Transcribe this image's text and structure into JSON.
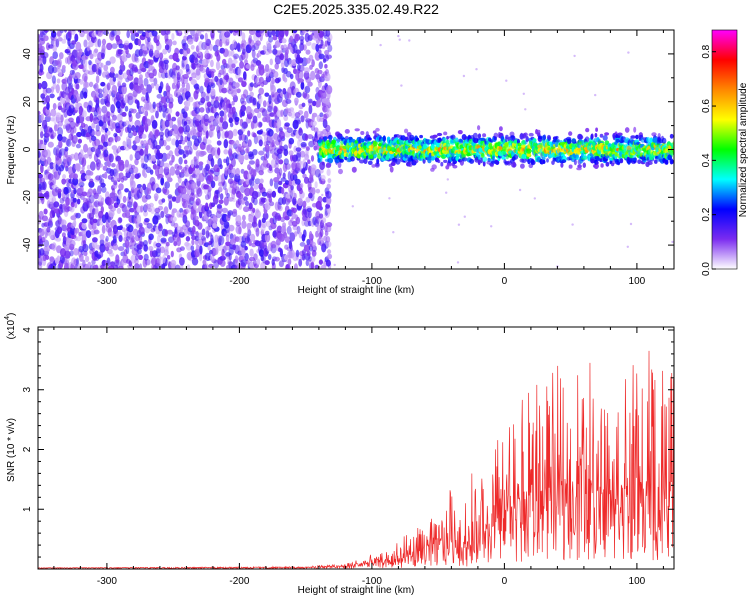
{
  "figure_title": "C2E5.2025.335.02.49.R22",
  "colors": {
    "snr_line": "#ee2a2a",
    "axis": "#000000",
    "background": "#ffffff"
  },
  "chart_data": [
    {
      "type": "heatmap",
      "xlabel": "Height of straight line (km)",
      "ylabel": "Frequency (Hz)",
      "xlim": [
        -352,
        128
      ],
      "ylim": [
        -50,
        50
      ],
      "xticks": [
        -300,
        -200,
        -100,
        0,
        100
      ],
      "xtick_labels": [
        "-300",
        "-200",
        "-100",
        "0",
        "100"
      ],
      "yticks": [
        -40,
        -20,
        0,
        20,
        40
      ],
      "ytick_labels": [
        "-40",
        "-20",
        "0",
        "20",
        "40"
      ],
      "colorbar": {
        "label": "Normalized spectral amplitude",
        "range": [
          0.0,
          0.88
        ],
        "ticks": [
          0.0,
          0.2,
          0.4,
          0.6,
          0.8
        ],
        "tick_labels": [
          "0.0",
          "0.2",
          "0.4",
          "0.6",
          "0.8"
        ],
        "colormap": [
          "#ffffff",
          "#7b2cf0",
          "#0000ff",
          "#00ffff",
          "#00ff00",
          "#ffff00",
          "#ff8800",
          "#ff0000",
          "#ff00ff"
        ]
      },
      "regions": [
        {
          "name": "broadband noise",
          "x_range": [
            -352,
            -133
          ],
          "y_range": [
            -50,
            50
          ],
          "level": 0.12
        },
        {
          "name": "signal band",
          "x_range": [
            -140,
            128
          ],
          "center_hz": 0,
          "half_width_hz": 8,
          "level": 0.35
        }
      ]
    },
    {
      "type": "line",
      "xlabel": "Height of straight line (km)",
      "ylabel": "SNR (10 * v/v)",
      "y_multiplier": "(x10",
      "y_multiplier_exp": "4",
      "y_multiplier_close": ")",
      "xlim": [
        -352,
        128
      ],
      "ylim": [
        0,
        4.05
      ],
      "xticks": [
        -300,
        -200,
        -100,
        0,
        100
      ],
      "xtick_labels": [
        "-300",
        "-200",
        "-100",
        "0",
        "100"
      ],
      "yticks": [
        1,
        2,
        3,
        4
      ],
      "ytick_labels": [
        "1",
        "2",
        "3",
        "4"
      ],
      "envelope": {
        "x": [
          -352,
          -150,
          -120,
          -100,
          -80,
          -70,
          -60,
          -50,
          -40,
          -30,
          -25,
          -20,
          -10,
          0,
          10,
          20,
          30,
          40,
          50,
          60,
          70,
          80,
          90,
          100,
          110,
          120,
          128
        ],
        "mean": [
          0.02,
          0.03,
          0.05,
          0.1,
          0.15,
          0.25,
          0.35,
          0.45,
          0.5,
          0.45,
          0.4,
          0.6,
          0.8,
          1.0,
          1.1,
          1.2,
          1.3,
          1.4,
          1.4,
          1.45,
          1.4,
          1.45,
          1.35,
          1.4,
          1.35,
          1.3,
          1.3
        ],
        "peak": [
          0.02,
          0.04,
          0.1,
          0.25,
          0.45,
          0.7,
          0.7,
          1.0,
          1.4,
          1.1,
          1.7,
          1.5,
          2.0,
          2.5,
          2.7,
          3.1,
          3.3,
          3.4,
          3.5,
          3.6,
          3.9,
          3.2,
          3.6,
          3.5,
          4.0,
          3.7,
          3.2
        ]
      }
    }
  ]
}
